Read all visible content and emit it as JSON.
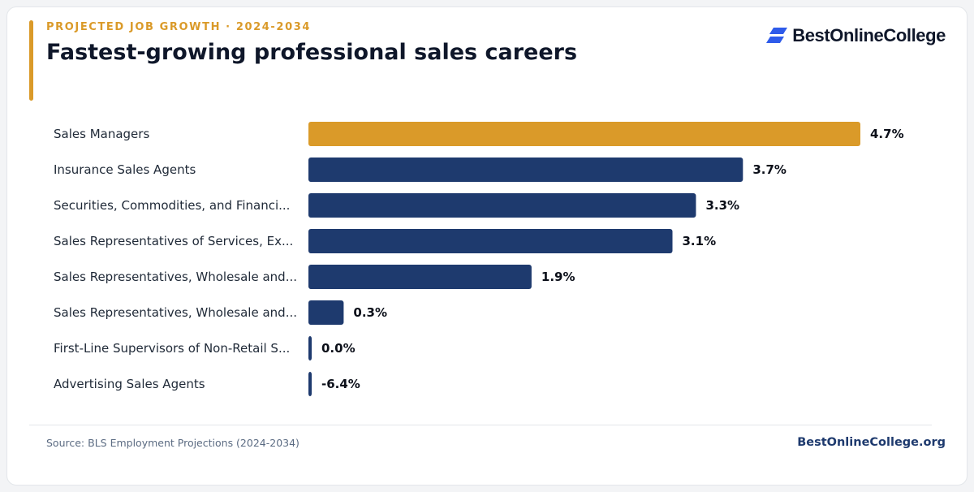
{
  "header": {
    "eyebrow": "PROJECTED JOB GROWTH · 2024-2034",
    "title": "Fastest-growing professional sales careers"
  },
  "logo": {
    "text": "BestOnlineCollege",
    "icon": "stacked-parallelogram-logo-icon"
  },
  "footer": {
    "source": "Source: BLS Employment Projections (2024-2034)",
    "site": "BestOnlineCollege.org"
  },
  "colors": {
    "highlight": "#DA9A29",
    "bar": "#1E3A6E",
    "title": "#0F172A",
    "label": "#1F2937",
    "value": "#0B0F19",
    "source": "#5B6B82",
    "site": "#1E3A6E",
    "logo_blue": "#2E5BEA"
  },
  "chart_data": {
    "type": "bar",
    "orientation": "horizontal",
    "title": "Fastest-growing professional sales careers",
    "subtitle": "PROJECTED JOB GROWTH · 2024-2034",
    "xlabel": "",
    "ylabel": "",
    "unit": "%",
    "grid": false,
    "legend": "none",
    "xlim": [
      0,
      4.7
    ],
    "categories": [
      "Sales Managers",
      "Insurance Sales Agents",
      "Securities, Commodities, and Financi...",
      "Sales Representatives of Services, Ex...",
      "Sales Representatives, Wholesale and...",
      "Sales Representatives, Wholesale and...",
      "First-Line Supervisors of Non-Retail S...",
      "Advertising Sales Agents"
    ],
    "values": [
      4.7,
      3.7,
      3.3,
      3.1,
      1.9,
      0.3,
      0.0,
      -6.4
    ],
    "value_labels": [
      "4.7%",
      "3.7%",
      "3.3%",
      "3.1%",
      "1.9%",
      "0.3%",
      "0.0%",
      "-6.4%"
    ],
    "highlight_index": 0
  }
}
